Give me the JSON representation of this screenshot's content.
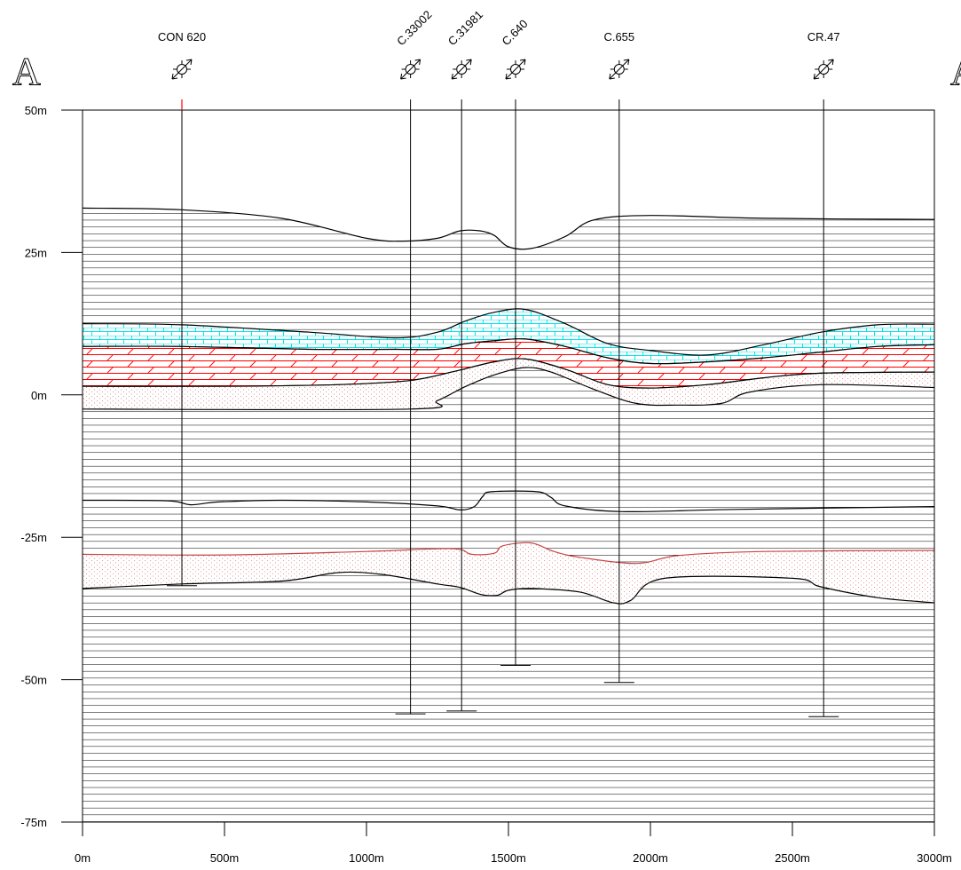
{
  "section_ends": {
    "left": "A",
    "right": "A'"
  },
  "depth_axis": {
    "unit": "m",
    "min": -75,
    "max": 50,
    "step": 25,
    "labels": [
      "50m",
      "25m",
      "0m",
      "-25m",
      "-50m",
      "-75m"
    ]
  },
  "distance_axis": {
    "unit": "m",
    "min": 0,
    "max": 3000,
    "step": 500,
    "labels": [
      "0m",
      "500m",
      "1000m",
      "1500m",
      "2000m",
      "2500m",
      "3000m"
    ]
  },
  "wells": [
    {
      "name": "CON 620",
      "x_m": 350,
      "bottom_m": -33.5,
      "symbol": "well-symbol-icon",
      "label_rotated": false
    },
    {
      "name": "C.33002",
      "x_m": 1155,
      "bottom_m": -56,
      "symbol": "well-symbol-icon",
      "label_rotated": true
    },
    {
      "name": "C.31981",
      "x_m": 1335,
      "bottom_m": -55.5,
      "symbol": "well-symbol-icon",
      "label_rotated": true
    },
    {
      "name": "C.640",
      "x_m": 1525,
      "bottom_m": -47.5,
      "symbol": "well-symbol-icon",
      "label_rotated": true
    },
    {
      "name": "C.655",
      "x_m": 1890,
      "bottom_m": -50.5,
      "symbol": "well-symbol-icon",
      "label_rotated": false
    },
    {
      "name": "CR.47",
      "x_m": 2610,
      "bottom_m": -56.5,
      "symbol": "well-symbol-icon",
      "label_rotated": false
    }
  ],
  "colors": {
    "frame": "#000000",
    "limestone": "#00e5ee",
    "red_unit": "#ff0000",
    "sand_dots": "#d98080",
    "sand_top_line": "#cc4444"
  },
  "layers": [
    {
      "id": "upper-boundary",
      "top": [
        [
          0,
          32.8
        ],
        [
          350,
          32.5
        ],
        [
          700,
          31
        ],
        [
          1000,
          27.5
        ],
        [
          1130,
          27
        ],
        [
          1250,
          27.5
        ],
        [
          1330,
          28.8
        ],
        [
          1400,
          28.8
        ],
        [
          1450,
          28
        ],
        [
          1500,
          26
        ],
        [
          1580,
          25.7
        ],
        [
          1700,
          27.8
        ],
        [
          1800,
          30.7
        ],
        [
          2000,
          31.5
        ],
        [
          2400,
          31
        ],
        [
          3000,
          30.8
        ]
      ]
    },
    {
      "id": "limestone",
      "pattern": "limestone",
      "top": [
        [
          0,
          12.5
        ],
        [
          350,
          12.3
        ],
        [
          800,
          11
        ],
        [
          1100,
          10
        ],
        [
          1250,
          11
        ],
        [
          1350,
          13
        ],
        [
          1450,
          14.5
        ],
        [
          1560,
          15
        ],
        [
          1700,
          12.5
        ],
        [
          1850,
          9
        ],
        [
          2000,
          7.8
        ],
        [
          2200,
          7
        ],
        [
          2400,
          8.8
        ],
        [
          2600,
          11
        ],
        [
          2800,
          12.3
        ],
        [
          3000,
          12.4
        ]
      ],
      "bottom": [
        [
          0,
          8.5
        ],
        [
          350,
          8.5
        ],
        [
          800,
          8
        ],
        [
          1100,
          8
        ],
        [
          1250,
          8
        ],
        [
          1350,
          9
        ],
        [
          1450,
          9.5
        ],
        [
          1560,
          9.8
        ],
        [
          1700,
          8.5
        ],
        [
          1850,
          6.5
        ],
        [
          2000,
          5.5
        ],
        [
          2200,
          5.8
        ],
        [
          2400,
          6.5
        ],
        [
          2600,
          7.5
        ],
        [
          2800,
          8.5
        ],
        [
          3000,
          8.8
        ]
      ]
    },
    {
      "id": "red-unit",
      "pattern": "red",
      "top": [
        [
          0,
          8.5
        ],
        [
          350,
          8.5
        ],
        [
          800,
          8
        ],
        [
          1100,
          8
        ],
        [
          1250,
          8
        ],
        [
          1350,
          9
        ],
        [
          1450,
          9.5
        ],
        [
          1560,
          9.8
        ],
        [
          1700,
          8.5
        ],
        [
          1850,
          6.5
        ],
        [
          2000,
          5.5
        ],
        [
          2200,
          5.8
        ],
        [
          2400,
          6.5
        ],
        [
          2600,
          7.5
        ],
        [
          2800,
          8.5
        ],
        [
          3000,
          8.8
        ]
      ],
      "bottom": [
        [
          0,
          1.5
        ],
        [
          500,
          1.5
        ],
        [
          900,
          1.8
        ],
        [
          1150,
          2.5
        ],
        [
          1300,
          4
        ],
        [
          1450,
          5.8
        ],
        [
          1560,
          6.3
        ],
        [
          1700,
          4.5
        ],
        [
          1850,
          1.8
        ],
        [
          2000,
          1.2
        ],
        [
          2200,
          1.8
        ],
        [
          2400,
          3
        ],
        [
          2600,
          3.8
        ],
        [
          3000,
          4
        ]
      ]
    },
    {
      "id": "sand-upper",
      "pattern": "sand",
      "top": [
        [
          0,
          1.5
        ],
        [
          500,
          1.5
        ],
        [
          900,
          1.8
        ],
        [
          1150,
          2.5
        ],
        [
          1300,
          4
        ],
        [
          1450,
          5.8
        ],
        [
          1560,
          6.3
        ],
        [
          1700,
          4.5
        ],
        [
          1850,
          1.8
        ],
        [
          2000,
          1.2
        ],
        [
          2200,
          1.8
        ],
        [
          2400,
          3
        ],
        [
          2600,
          3.8
        ],
        [
          3000,
          4
        ]
      ],
      "bottom": [
        [
          0,
          -2.5
        ],
        [
          1150,
          -2.5
        ],
        [
          1250,
          -1
        ],
        [
          1350,
          1.5
        ],
        [
          1450,
          3.5
        ],
        [
          1560,
          4.8
        ],
        [
          1650,
          4
        ],
        [
          1800,
          1
        ],
        [
          1950,
          -1.5
        ],
        [
          2100,
          -1.8
        ],
        [
          2250,
          -1.5
        ],
        [
          2350,
          0.5
        ],
        [
          2600,
          1.8
        ],
        [
          3000,
          1.3
        ]
      ]
    },
    {
      "id": "mid-boundary",
      "top": [
        [
          0,
          -18.5
        ],
        [
          300,
          -18.6
        ],
        [
          380,
          -19.3
        ],
        [
          480,
          -18.8
        ],
        [
          700,
          -18.5
        ],
        [
          1000,
          -18.8
        ],
        [
          1250,
          -19.5
        ],
        [
          1330,
          -20.2
        ],
        [
          1380,
          -19.6
        ],
        [
          1410,
          -17.8
        ],
        [
          1440,
          -17
        ],
        [
          1600,
          -17
        ],
        [
          1650,
          -18
        ],
        [
          1700,
          -19.5
        ],
        [
          1900,
          -20.5
        ],
        [
          2300,
          -20.1
        ],
        [
          3000,
          -19.6
        ]
      ]
    },
    {
      "id": "sand-lower",
      "pattern": "sand",
      "top": [
        [
          0,
          -28
        ],
        [
          500,
          -28.1
        ],
        [
          1000,
          -27.5
        ],
        [
          1300,
          -27
        ],
        [
          1370,
          -28
        ],
        [
          1450,
          -27.8
        ],
        [
          1480,
          -26.5
        ],
        [
          1580,
          -26
        ],
        [
          1660,
          -27.5
        ],
        [
          1750,
          -28.5
        ],
        [
          1950,
          -29.6
        ],
        [
          2100,
          -28.2
        ],
        [
          2400,
          -27.5
        ],
        [
          3000,
          -27.3
        ]
      ],
      "bottom": [
        [
          0,
          -34
        ],
        [
          350,
          -33.2
        ],
        [
          700,
          -32.7
        ],
        [
          900,
          -31.2
        ],
        [
          1050,
          -31.5
        ],
        [
          1250,
          -33.2
        ],
        [
          1330,
          -33.8
        ],
        [
          1400,
          -35
        ],
        [
          1460,
          -35.2
        ],
        [
          1500,
          -34.3
        ],
        [
          1580,
          -34
        ],
        [
          1750,
          -34.6
        ],
        [
          1870,
          -36.5
        ],
        [
          1930,
          -36.1
        ],
        [
          2050,
          -32.2
        ],
        [
          2500,
          -32.2
        ],
        [
          2600,
          -33.7
        ],
        [
          2800,
          -35.6
        ],
        [
          3000,
          -36.5
        ]
      ]
    }
  ]
}
